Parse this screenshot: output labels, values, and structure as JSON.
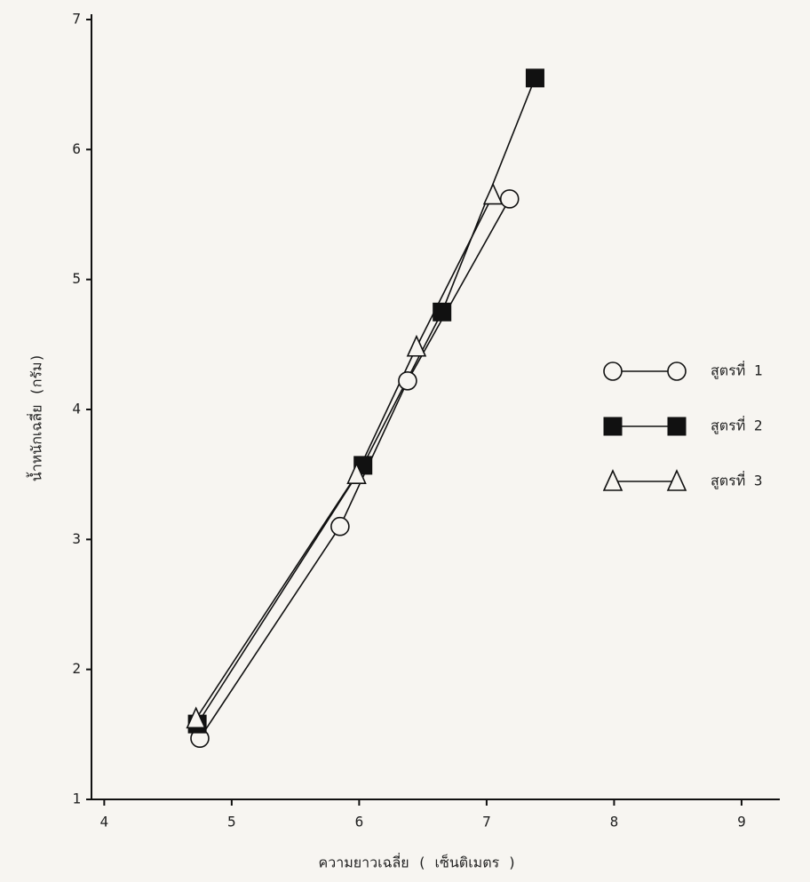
{
  "chart_data": {
    "type": "line",
    "x_label": "ความยาวเฉลี่ย ( เซ็นติเมตร )",
    "y_label": "น้ำหนักเฉลี่ย (กรัม)",
    "xlim": [
      3.9,
      9.3
    ],
    "xticks": [
      4,
      5,
      6,
      7,
      8,
      9
    ],
    "ylim": [
      1,
      7
    ],
    "yticks": [
      1,
      2,
      3,
      4,
      5,
      6,
      7
    ],
    "grid": false,
    "series": [
      {
        "name": "สูตรที่ 1",
        "marker": "circle",
        "color": "#111111",
        "x": [
          4.75,
          5.85,
          6.38,
          7.18
        ],
        "values": [
          1.47,
          3.1,
          4.22,
          5.62
        ]
      },
      {
        "name": "สูตรที่ 2",
        "marker": "square",
        "color": "#111111",
        "x": [
          4.73,
          6.03,
          6.65,
          7.38
        ],
        "values": [
          1.58,
          3.57,
          4.75,
          6.55
        ]
      },
      {
        "name": "สูตรที่ 3",
        "marker": "triangle",
        "color": "#111111",
        "x": [
          4.72,
          5.98,
          6.45,
          7.05
        ],
        "values": [
          1.62,
          3.5,
          4.48,
          5.65
        ]
      }
    ]
  }
}
